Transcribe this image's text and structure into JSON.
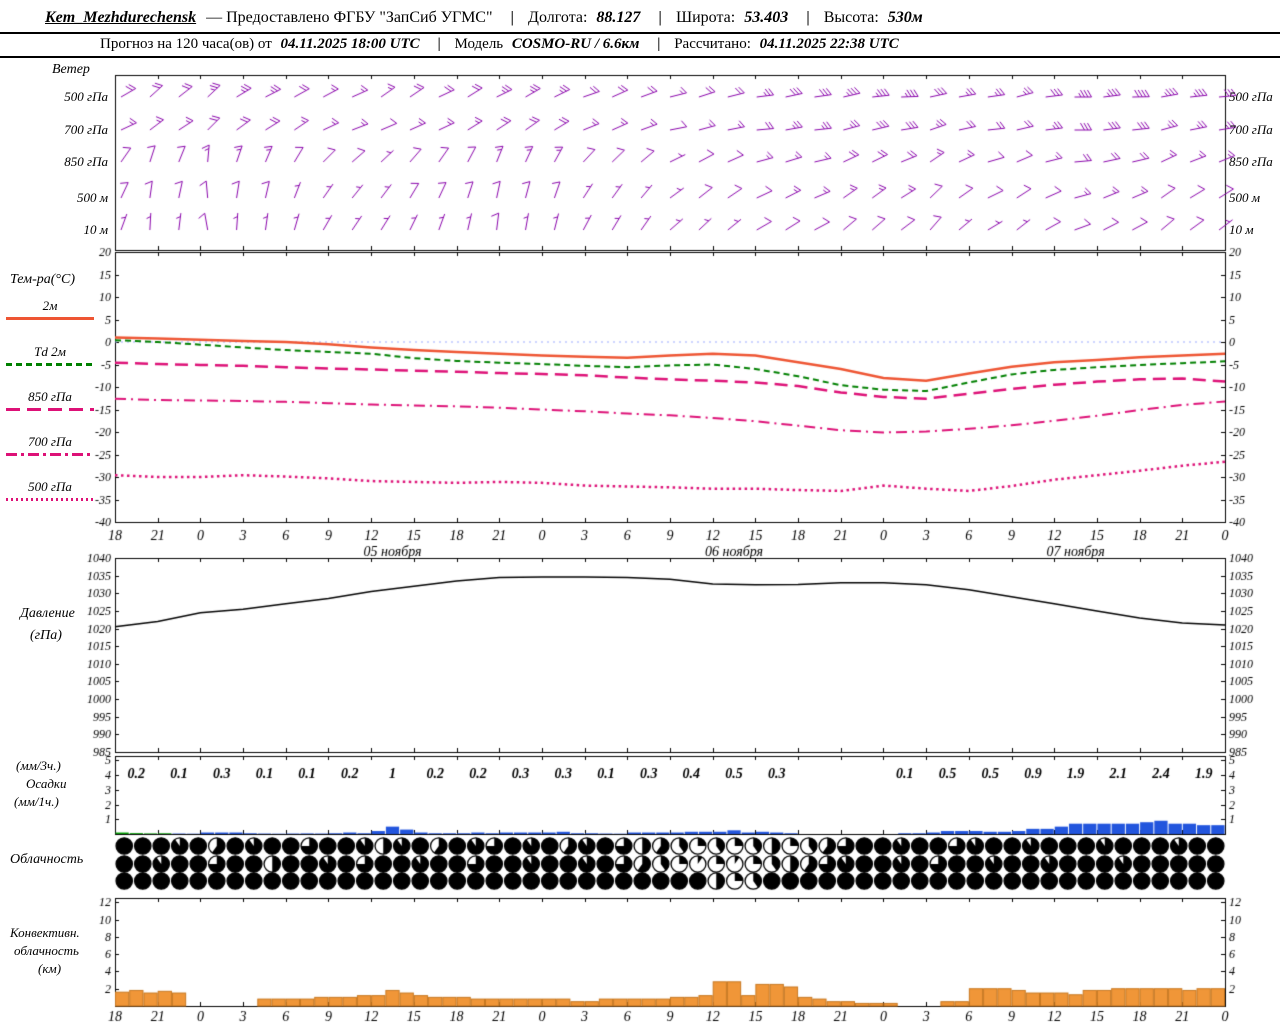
{
  "header": {
    "station": "Kem_Mezhdurechensk",
    "provided": "— Предоставлено ФГБУ \"ЗапСиб УГМС\"",
    "sep": "|",
    "lon_label": "Долгота:",
    "lon_value": "88.127",
    "lat_label": "Широта:",
    "lat_value": "53.403",
    "alt_label": "Высота:",
    "alt_value": "530м",
    "forecast_prefix": "Прогноз на 120 часа(ов) от",
    "run_time": "04.11.2025 18:00 UTC",
    "model_label": "Модель",
    "model_value": "COSMO-RU / 6.6км",
    "calc_label": "Рассчитано:",
    "calc_value": "04.11.2025 22:38 UTC"
  },
  "panels": {
    "wind": {
      "title": "Ветер"
    },
    "temperature": {
      "title": "Тем-ра(°C)"
    },
    "pressure": {
      "line1": "Давление",
      "line2": "(гПа)"
    },
    "precip": {
      "line1": "(мм/3ч.)",
      "line2": "Осадки",
      "line3": "(мм/1ч.)"
    },
    "cloud": {
      "title": "Облачность"
    },
    "convective": {
      "line1": "Конвективн.",
      "line2": "облачность",
      "line3": "(км)"
    }
  },
  "chart_data": [
    {
      "type": "wind-barbs",
      "title": "Ветер",
      "color": "#8800aa",
      "rows": [
        {
          "level": "500 гПа",
          "dir": [
            35,
            40,
            38,
            30,
            25,
            28,
            32,
            35,
            30,
            28,
            25,
            22,
            20,
            18,
            15,
            12,
            10,
            8,
            5,
            8,
            10,
            12,
            8,
            5,
            3,
            5,
            8
          ],
          "spd": [
            20,
            20,
            25,
            25,
            20,
            15,
            15,
            20,
            20,
            25,
            25,
            20,
            20,
            15,
            20,
            25,
            30,
            35,
            35,
            30,
            25,
            25,
            30,
            35,
            40,
            35,
            30
          ]
        },
        {
          "level": "700 гПа",
          "dir": [
            30,
            35,
            40,
            35,
            30,
            25,
            20,
            25,
            30,
            35,
            30,
            25,
            20,
            15,
            12,
            10,
            8,
            10,
            12,
            15,
            12,
            10,
            8,
            5,
            8,
            10,
            12
          ],
          "spd": [
            15,
            15,
            20,
            20,
            15,
            15,
            10,
            15,
            15,
            20,
            20,
            15,
            15,
            10,
            15,
            20,
            25,
            25,
            30,
            25,
            20,
            20,
            25,
            30,
            30,
            25,
            25
          ]
        },
        {
          "level": "850 гПа",
          "dir": [
            60,
            70,
            80,
            70,
            55,
            45,
            40,
            50,
            60,
            70,
            60,
            50,
            40,
            30,
            25,
            20,
            15,
            20,
            25,
            30,
            25,
            20,
            15,
            10,
            15,
            20,
            25
          ],
          "spd": [
            10,
            10,
            15,
            15,
            10,
            10,
            5,
            10,
            10,
            15,
            15,
            10,
            10,
            5,
            10,
            15,
            15,
            20,
            20,
            15,
            15,
            10,
            15,
            20,
            20,
            15,
            15
          ]
        },
        {
          "level": "500 м",
          "dir": [
            70,
            80,
            90,
            80,
            65,
            55,
            50,
            60,
            70,
            80,
            70,
            60,
            50,
            40,
            35,
            30,
            25,
            30,
            35,
            40,
            35,
            30,
            25,
            20,
            25,
            30,
            35
          ],
          "spd": [
            10,
            10,
            10,
            10,
            5,
            5,
            5,
            10,
            10,
            10,
            10,
            5,
            5,
            5,
            10,
            10,
            15,
            15,
            15,
            10,
            10,
            10,
            10,
            15,
            15,
            10,
            10
          ]
        },
        {
          "level": "10 м",
          "dir": [
            75,
            85,
            95,
            85,
            70,
            60,
            55,
            65,
            75,
            85,
            75,
            65,
            55,
            45,
            40,
            35,
            30,
            35,
            40,
            45,
            40,
            35,
            30,
            25,
            30,
            35,
            40
          ],
          "spd": [
            5,
            5,
            10,
            5,
            5,
            5,
            5,
            5,
            5,
            10,
            5,
            5,
            5,
            5,
            5,
            10,
            10,
            10,
            10,
            10,
            5,
            5,
            10,
            10,
            10,
            10,
            5
          ]
        }
      ]
    },
    {
      "type": "line",
      "title": "Тем-ра(°C)",
      "ylim": [
        -40,
        20
      ],
      "yticks": [
        20,
        15,
        10,
        5,
        0,
        -5,
        -10,
        -15,
        -20,
        -25,
        -30,
        -35,
        -40
      ],
      "zero_line_color": "#99aaff",
      "x_tick_labels": [
        "18",
        "21",
        "0",
        "3",
        "6",
        "9",
        "12",
        "15",
        "18",
        "21",
        "0",
        "3",
        "6",
        "9",
        "12",
        "15",
        "18",
        "21",
        "0",
        "3",
        "6",
        "9",
        "12",
        "15",
        "18",
        "21",
        "0"
      ],
      "date_labels": [
        {
          "label": "05 ноября",
          "center_index": 6.5
        },
        {
          "label": "06 ноября",
          "center_index": 14.5
        },
        {
          "label": "07 ноября",
          "center_index": 22.5
        }
      ],
      "series": [
        {
          "name": "2м",
          "color": "#ee5533",
          "dash": "solid",
          "values": [
            1.0,
            0.8,
            0.5,
            0.2,
            0.0,
            -0.5,
            -1.2,
            -1.8,
            -2.2,
            -2.6,
            -3.0,
            -3.3,
            -3.5,
            -3.0,
            -2.6,
            -3.0,
            -4.5,
            -6.0,
            -8.0,
            -8.6,
            -7.0,
            -5.5,
            -4.5,
            -4.0,
            -3.4,
            -3.0,
            -2.6
          ]
        },
        {
          "name": "Td 2м",
          "color": "#008000",
          "dash": "dashed",
          "values": [
            0.4,
            0.0,
            -0.6,
            -1.2,
            -1.8,
            -2.2,
            -2.6,
            -3.6,
            -4.2,
            -4.6,
            -4.9,
            -5.3,
            -5.6,
            -5.2,
            -5.0,
            -6.0,
            -7.6,
            -9.6,
            -10.6,
            -10.9,
            -9.0,
            -7.2,
            -6.2,
            -5.6,
            -5.1,
            -4.7,
            -4.3
          ]
        },
        {
          "name": "850 гПа",
          "color": "#dd1177",
          "dash": "longdash",
          "values": [
            -4.6,
            -4.9,
            -5.1,
            -5.3,
            -5.6,
            -5.9,
            -6.1,
            -6.4,
            -6.6,
            -6.9,
            -7.1,
            -7.4,
            -7.9,
            -8.3,
            -8.6,
            -9.0,
            -9.8,
            -11.2,
            -12.2,
            -12.6,
            -11.5,
            -10.4,
            -9.5,
            -8.8,
            -8.3,
            -8.1,
            -8.8
          ]
        },
        {
          "name": "700 гПа",
          "color": "#dd1177",
          "dash": "dashdot",
          "values": [
            -12.6,
            -12.9,
            -13.0,
            -13.1,
            -13.3,
            -13.6,
            -13.9,
            -14.1,
            -14.3,
            -14.6,
            -15.0,
            -15.4,
            -15.9,
            -16.3,
            -16.9,
            -17.6,
            -18.6,
            -19.6,
            -20.1,
            -19.9,
            -19.3,
            -18.5,
            -17.5,
            -16.4,
            -15.1,
            -14.0,
            -13.2
          ]
        },
        {
          "name": "500 гПа",
          "color": "#dd1177",
          "dash": "dotted",
          "values": [
            -29.6,
            -30.0,
            -30.0,
            -29.6,
            -29.9,
            -30.3,
            -30.9,
            -31.1,
            -31.3,
            -31.1,
            -31.3,
            -31.9,
            -32.1,
            -32.3,
            -32.6,
            -32.6,
            -32.9,
            -33.1,
            -31.9,
            -32.6,
            -33.1,
            -32.0,
            -30.6,
            -29.6,
            -28.6,
            -27.5,
            -26.6
          ]
        }
      ]
    },
    {
      "type": "line",
      "title": "Давление (гПа)",
      "ylim": [
        985,
        1040
      ],
      "yticks": [
        1040,
        1035,
        1030,
        1025,
        1020,
        1015,
        1010,
        1005,
        1000,
        995,
        990,
        985
      ],
      "color": "#000000",
      "values": [
        1020.5,
        1022.0,
        1024.5,
        1025.5,
        1027.0,
        1028.5,
        1030.5,
        1032.0,
        1033.5,
        1034.5,
        1034.6,
        1034.6,
        1034.5,
        1034.0,
        1032.6,
        1032.4,
        1032.5,
        1033.0,
        1033.0,
        1032.4,
        1031.0,
        1029.0,
        1027.0,
        1025.0,
        1023.0,
        1021.6,
        1021.0
      ]
    },
    {
      "type": "bar",
      "title": "Осадки",
      "units_3h": "мм/3ч.",
      "units_1h": "мм/1ч.",
      "ylim": [
        0,
        5
      ],
      "yticks": [
        5,
        4,
        3,
        2,
        1
      ],
      "bar_color": "#2255dd",
      "green_color": "#00a000",
      "green_first_bars": 4,
      "threehour_values": [
        "0.2",
        "0.1",
        "0.3",
        "0.1",
        "0.1",
        "0.2",
        "1",
        "0.2",
        "0.2",
        "0.3",
        "0.3",
        "0.1",
        "0.3",
        "0.4",
        "0.5",
        "0.3",
        "",
        "",
        "0.1",
        "0.5",
        "0.5",
        "0.9",
        "1.9",
        "2.1",
        "2.4",
        "1.9"
      ],
      "hourly_values": [
        0.1,
        0.06,
        0.04,
        0.05,
        0.03,
        0.02,
        0.1,
        0.1,
        0.1,
        0.05,
        0.03,
        0.02,
        0.03,
        0.04,
        0.03,
        0.05,
        0.1,
        0.05,
        0.2,
        0.5,
        0.3,
        0.1,
        0.05,
        0.05,
        0.05,
        0.1,
        0.05,
        0.1,
        0.1,
        0.1,
        0.1,
        0.15,
        0.05,
        0.05,
        0.03,
        0.02,
        0.1,
        0.1,
        0.1,
        0.1,
        0.15,
        0.15,
        0.15,
        0.25,
        0.1,
        0.15,
        0.1,
        0.05,
        0,
        0,
        0,
        0,
        0,
        0,
        0,
        0.05,
        0.05,
        0.1,
        0.2,
        0.2,
        0.2,
        0.15,
        0.15,
        0.2,
        0.35,
        0.35,
        0.5,
        0.7,
        0.7,
        0.7,
        0.7,
        0.7,
        0.8,
        0.9,
        0.7,
        0.7,
        0.6,
        0.6
      ]
    },
    {
      "type": "cloud-symbols",
      "title": "Облачность",
      "rows": [
        [
          1,
          1,
          1,
          0.9,
          1,
          0.6,
          1,
          0.9,
          1,
          1,
          0.75,
          1,
          1,
          0.9,
          0.5,
          0.9,
          1,
          0.6,
          1,
          0.9,
          0.75,
          1,
          0.9,
          1,
          0.6,
          0.9,
          1,
          0.75,
          0.5,
          0.6,
          0.4,
          0.25,
          0.4,
          0.25,
          0.4,
          0.5,
          0.25,
          0.4,
          0.6,
          0.75,
          1,
          1,
          0.9,
          1,
          1,
          0.75,
          0.9,
          1,
          1,
          0.9,
          1,
          1,
          1,
          0.9,
          1,
          1,
          1,
          0.9,
          1,
          1
        ],
        [
          1,
          1,
          0.9,
          1,
          1,
          0.75,
          1,
          1,
          0.5,
          1,
          1,
          0.9,
          1,
          0.75,
          1,
          1,
          0.9,
          1,
          1,
          0.75,
          1,
          1,
          0.9,
          1,
          1,
          0.9,
          1,
          0.75,
          0.6,
          0.4,
          0.25,
          0.1,
          0.25,
          0.1,
          0.25,
          0.4,
          0.5,
          0.6,
          0.75,
          0.9,
          1,
          1,
          0.9,
          1,
          0.75,
          1,
          1,
          0.9,
          1,
          1,
          0.9,
          1,
          1,
          1,
          0.9,
          1,
          1,
          1,
          1,
          1
        ],
        [
          1,
          1,
          1,
          1,
          1,
          1,
          1,
          1,
          1,
          1,
          1,
          1,
          1,
          1,
          1,
          1,
          1,
          1,
          1,
          1,
          1,
          1,
          1,
          1,
          1,
          1,
          1,
          1,
          1,
          1,
          1,
          1,
          0.5,
          0.25,
          0.4,
          1,
          1,
          1,
          1,
          1,
          1,
          1,
          1,
          1,
          1,
          1,
          1,
          1,
          1,
          1,
          1,
          1,
          1,
          1,
          1,
          1,
          1,
          1,
          1,
          1
        ]
      ]
    },
    {
      "type": "bar",
      "title": "Конвективная облачность",
      "units": "км",
      "ylim": [
        0,
        12
      ],
      "yticks": [
        12,
        10,
        8,
        6,
        4,
        2
      ],
      "bar_color": "#f09638",
      "bar_edge": "#c87820",
      "hourly_values": [
        1.6,
        1.8,
        1.5,
        1.7,
        1.5,
        0,
        0,
        0,
        0,
        0,
        0.8,
        0.8,
        0.8,
        0.8,
        1.0,
        1.0,
        1.0,
        1.2,
        1.2,
        1.8,
        1.5,
        1.2,
        1.0,
        1.0,
        1.0,
        0.8,
        0.8,
        0.8,
        0.8,
        0.8,
        0.8,
        0.8,
        0.5,
        0.5,
        0.8,
        0.8,
        0.8,
        0.8,
        0.8,
        1.0,
        1.0,
        1.2,
        2.8,
        2.8,
        1.2,
        2.5,
        2.5,
        2.2,
        1.0,
        0.8,
        0.5,
        0.5,
        0.3,
        0.3,
        0.3,
        0,
        0,
        0,
        0.5,
        0.5,
        2.0,
        2.0,
        2.0,
        1.8,
        1.5,
        1.5,
        1.5,
        1.3,
        1.8,
        1.8,
        2.0,
        2.0,
        2.0,
        2.0,
        2.0,
        1.8,
        2.0,
        2.0
      ]
    }
  ]
}
